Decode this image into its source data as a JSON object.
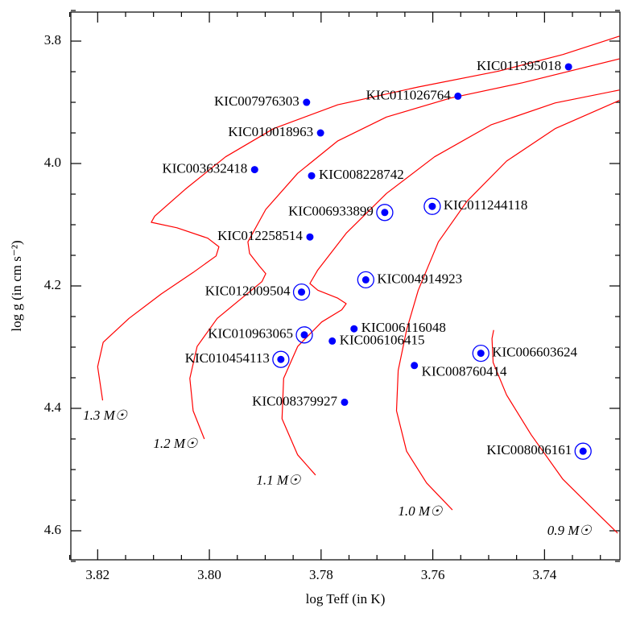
{
  "chart_data": {
    "type": "scatter",
    "xlabel": "log Teff (in K)",
    "ylabel": "log g (in cm s⁻²)",
    "xlim": [
      3.8248,
      3.7265
    ],
    "ylim": [
      3.7526,
      4.6474
    ],
    "xticks": [
      3.82,
      {
        "value": 3.8,
        "label": "3.80"
      },
      3.78,
      3.76,
      3.74
    ],
    "yticks": [
      3.8,
      {
        "value": 4.0,
        "label": "4.0"
      },
      4.2,
      4.4,
      4.6
    ],
    "xminorticks": [
      3.825,
      3.815,
      3.81,
      3.805,
      3.795,
      3.79,
      3.785,
      3.775,
      3.77,
      3.765,
      3.755,
      3.75,
      3.745,
      3.735,
      3.73
    ],
    "yminorticks": [
      3.75,
      3.85,
      3.9,
      3.95,
      4.05,
      4.1,
      4.15,
      4.25,
      4.3,
      4.35,
      4.45,
      4.5,
      4.55,
      4.65
    ],
    "point_color": "#0000ff",
    "points": {
      "labels": [
        "KIC011395018",
        "KIC007976303",
        "KIC011026764",
        "KIC010018963",
        "KIC003632418",
        "KIC008228742",
        "KIC006933899",
        "KIC011244118",
        "KIC012258514",
        "KIC012009504",
        "KIC004914923",
        "KIC010963065",
        "KIC006116048",
        "KIC006106415",
        "KIC010454113",
        "KIC006603624",
        "KIC008760414",
        "KIC008379927",
        "KIC008006161"
      ],
      "x": [
        3.7357,
        3.7826,
        3.7555,
        3.7801,
        3.7919,
        3.7817,
        3.7686,
        3.7601,
        3.782,
        3.7835,
        3.772,
        3.783,
        3.7741,
        3.778,
        3.7872,
        3.7514,
        3.7633,
        3.7758,
        3.7331
      ],
      "y": [
        3.842,
        3.9,
        3.89,
        3.95,
        4.01,
        4.02,
        4.08,
        4.07,
        4.12,
        4.21,
        4.19,
        4.28,
        4.27,
        4.29,
        4.32,
        4.31,
        4.33,
        4.39,
        4.47
      ],
      "circled": [
        false,
        false,
        false,
        false,
        false,
        false,
        true,
        true,
        false,
        true,
        true,
        true,
        false,
        false,
        true,
        true,
        false,
        false,
        true
      ]
    },
    "tracks": [
      {
        "name": "1.3 M☉",
        "color": "#ff0000",
        "x": [
          3.8191,
          3.82,
          3.819,
          3.8144,
          3.8086,
          3.8029,
          3.7988,
          3.7983,
          3.8003,
          3.8058,
          3.8104,
          3.8098,
          3.8043,
          3.7971,
          3.7885,
          3.777,
          3.7626,
          3.7482,
          3.7367,
          3.7266
        ],
        "y": [
          4.387,
          4.332,
          4.292,
          4.253,
          4.213,
          4.178,
          4.151,
          4.136,
          4.122,
          4.105,
          4.096,
          4.086,
          4.042,
          3.989,
          3.943,
          3.904,
          3.875,
          3.849,
          3.822,
          3.792
        ]
      },
      {
        "name": "1.2 M☉",
        "color": "#ff0000",
        "x": [
          3.8009,
          3.8029,
          3.8035,
          3.8022,
          3.7986,
          3.7942,
          3.7906,
          3.7899,
          3.7911,
          3.7928,
          3.7931,
          3.7899,
          3.7842,
          3.777,
          3.7683,
          3.7568,
          3.7439,
          3.7266
        ],
        "y": [
          4.45,
          4.404,
          4.351,
          4.299,
          4.253,
          4.22,
          4.193,
          4.18,
          4.167,
          4.147,
          4.128,
          4.075,
          4.016,
          3.963,
          3.924,
          3.893,
          3.868,
          3.829
        ]
      },
      {
        "name": "1.1 M☉",
        "color": "#ff0000",
        "x": [
          3.781,
          3.7842,
          3.787,
          3.7867,
          3.7842,
          3.7799,
          3.7763,
          3.7755,
          3.777,
          3.7806,
          3.782,
          3.7806,
          3.7755,
          3.7683,
          3.7597,
          3.7496,
          3.7381,
          3.7266
        ],
        "y": [
          4.509,
          4.476,
          4.417,
          4.351,
          4.299,
          4.259,
          4.239,
          4.229,
          4.22,
          4.207,
          4.196,
          4.174,
          4.114,
          4.049,
          3.989,
          3.937,
          3.901,
          3.88
        ]
      },
      {
        "name": "1.0 M☉",
        "color": "#ff0000",
        "x": [
          3.7565,
          3.7611,
          3.7647,
          3.7665,
          3.7662,
          3.7647,
          3.7626,
          3.759,
          3.7539,
          3.7468,
          3.7381,
          3.7266
        ],
        "y": [
          4.566,
          4.522,
          4.47,
          4.404,
          4.338,
          4.272,
          4.207,
          4.128,
          4.062,
          3.996,
          3.943,
          3.897
        ]
      },
      {
        "name": "0.9 M☉",
        "color": "#ff0000",
        "x": [
          3.7269,
          3.7316,
          3.7367,
          3.7424,
          3.7468,
          3.7492,
          3.7494,
          3.7491
        ],
        "y": [
          4.604,
          4.562,
          4.516,
          4.443,
          4.378,
          4.325,
          4.286,
          4.272
        ]
      }
    ]
  }
}
